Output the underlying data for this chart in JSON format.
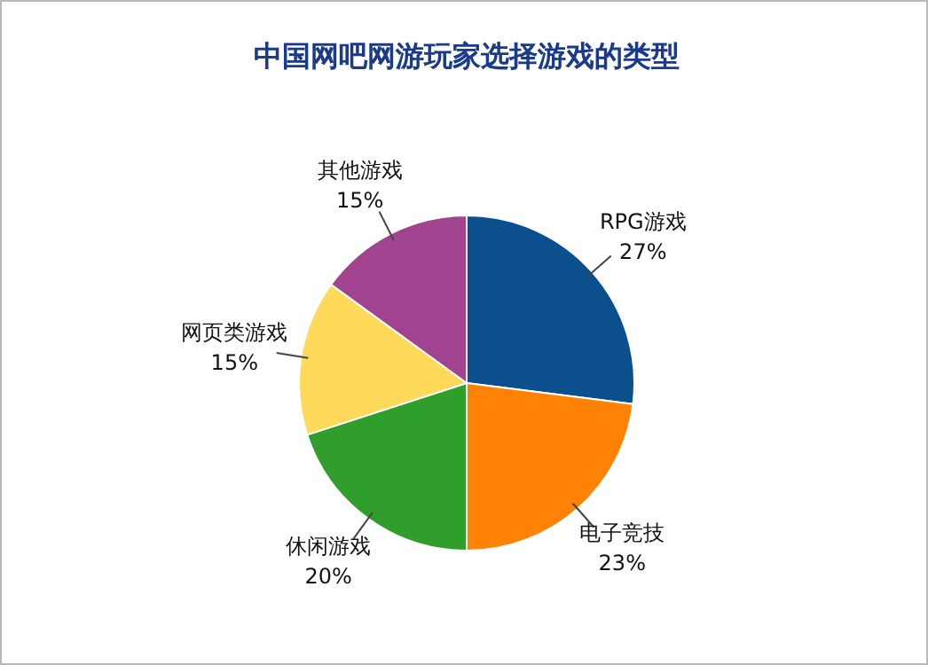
{
  "chart_data": {
    "type": "pie",
    "title": "中国网吧网游玩家选择游戏的类型",
    "categories": [
      "RPG游戏",
      "电子竞技",
      "休闲游戏",
      "网页类游戏",
      "其他游戏"
    ],
    "values": [
      27,
      23,
      20,
      15,
      15
    ],
    "colors": [
      "#0b4f8c",
      "#ff8205",
      "#2f9e2a",
      "#ffda5a",
      "#a2438f"
    ],
    "value_labels": [
      "27%",
      "23%",
      "20%",
      "15%",
      "15%"
    ],
    "legend": false
  }
}
